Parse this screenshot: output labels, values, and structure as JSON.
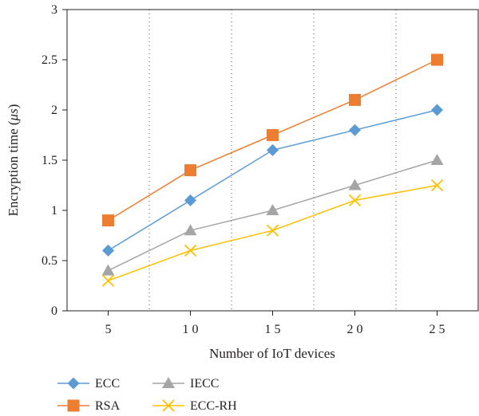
{
  "chart_data": {
    "type": "line",
    "xlabel": "Number of IoT devices",
    "ylabel": "Encryption time (",
    "ylabel_unit": "μs",
    "ylabel_suffix": ")",
    "categories": [
      "5",
      "1 0",
      "1 5",
      "2 0",
      "2 5"
    ],
    "ylim": [
      0,
      3
    ],
    "yticks": [
      "0",
      "0.5",
      "1",
      "1.5",
      "2",
      "2.5",
      "3"
    ],
    "grid": "vertical dotted separators between categories",
    "legend_position": "bottom-left",
    "series": [
      {
        "name": "ECC",
        "values": [
          0.6,
          1.1,
          1.6,
          1.8,
          2.0
        ],
        "color": "#5b9bd5",
        "marker": "diamond"
      },
      {
        "name": "RSA",
        "values": [
          0.9,
          1.4,
          1.75,
          2.1,
          2.5
        ],
        "color": "#ed7d31",
        "marker": "square"
      },
      {
        "name": "IECC",
        "values": [
          0.4,
          0.8,
          1.0,
          1.25,
          1.5
        ],
        "color": "#a5a5a5",
        "marker": "triangle"
      },
      {
        "name": "ECC-RH",
        "values": [
          0.3,
          0.6,
          0.8,
          1.1,
          1.25
        ],
        "color": "#ffc000",
        "marker": "x"
      }
    ]
  }
}
